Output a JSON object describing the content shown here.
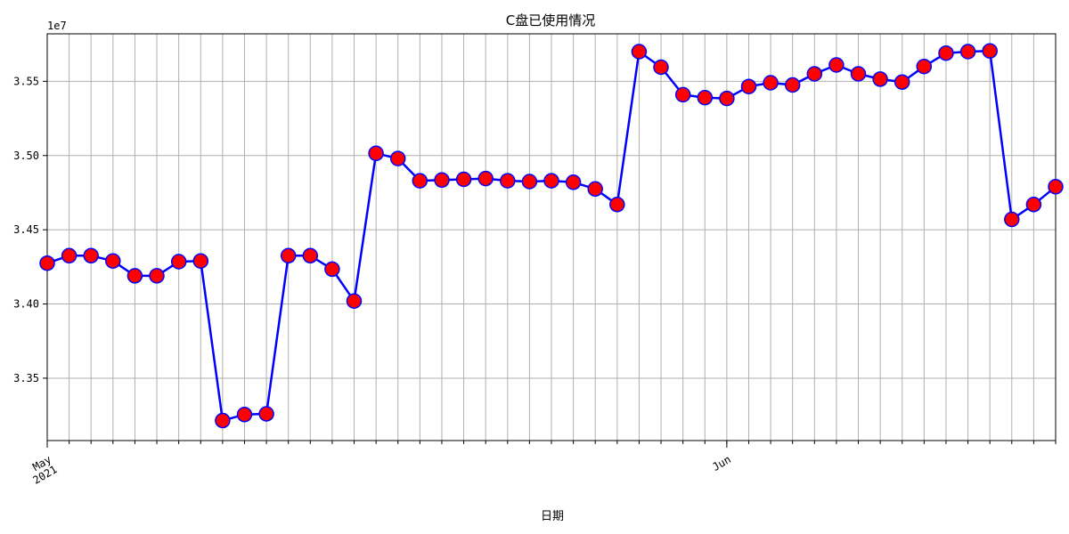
{
  "chart_data": {
    "type": "line",
    "title": "C盘已使用情况",
    "xlabel": "日期",
    "ylabel": "",
    "offset_text": "1e7",
    "y_scale_factor": 10000000,
    "x_ticks": [
      {
        "label": [
          "May",
          "2021"
        ],
        "date": "2021-05-01"
      },
      {
        "label": [
          "Jun"
        ],
        "date": "2021-06-01"
      }
    ],
    "y_ticks": [
      3.35,
      3.4,
      3.45,
      3.5,
      3.55
    ],
    "ylim": [
      33080000,
      35820000
    ],
    "xlim": [
      "2021-05-01",
      "2021-06-16"
    ],
    "grid": true,
    "legend": "none",
    "line_color": "#0000ff",
    "marker_face": "#ff0000",
    "marker_edge": "#0000ff",
    "series": [
      {
        "x": [
          "2021-05-01",
          "2021-05-02",
          "2021-05-03",
          "2021-05-04",
          "2021-05-05",
          "2021-05-06",
          "2021-05-07",
          "2021-05-08",
          "2021-05-09",
          "2021-05-10",
          "2021-05-11",
          "2021-05-12",
          "2021-05-13",
          "2021-05-14",
          "2021-05-15",
          "2021-05-16",
          "2021-05-17",
          "2021-05-18",
          "2021-05-19",
          "2021-05-20",
          "2021-05-21",
          "2021-05-22",
          "2021-05-23",
          "2021-05-24",
          "2021-05-25",
          "2021-05-26",
          "2021-05-27",
          "2021-05-28",
          "2021-05-29",
          "2021-05-30",
          "2021-05-31",
          "2021-06-01",
          "2021-06-02",
          "2021-06-03",
          "2021-06-04",
          "2021-06-05",
          "2021-06-06",
          "2021-06-07",
          "2021-06-08",
          "2021-06-09",
          "2021-06-10",
          "2021-06-11",
          "2021-06-12",
          "2021-06-13",
          "2021-06-14",
          "2021-06-15",
          "2021-06-16"
        ],
        "values": [
          34275000,
          34325000,
          34325000,
          34290000,
          34190000,
          34190000,
          34285000,
          34290000,
          33215000,
          33255000,
          33260000,
          34325000,
          34325000,
          34235000,
          34020000,
          35015000,
          34980000,
          34830000,
          34835000,
          34840000,
          34845000,
          34830000,
          34825000,
          34830000,
          34820000,
          34775000,
          34670000,
          35700000,
          35595000,
          35410000,
          35390000,
          35385000,
          35465000,
          35490000,
          35475000,
          35550000,
          35610000,
          35550000,
          35515000,
          35495000,
          35600000,
          35690000,
          35700000,
          35705000,
          34570000,
          34670000,
          34790000
        ]
      }
    ]
  }
}
